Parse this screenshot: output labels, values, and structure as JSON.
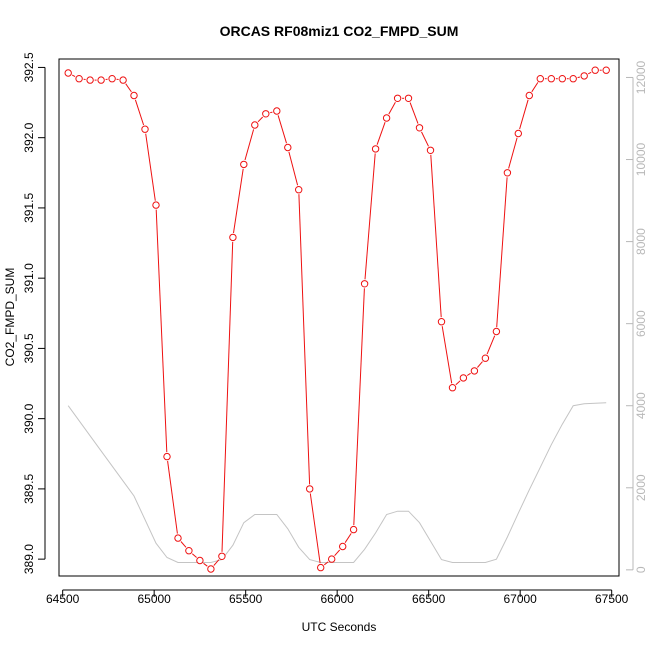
{
  "chart_data": {
    "type": "line",
    "title": "ORCAS RF08miz1 CO2_FMPD_SUM",
    "xlabel": "UTC Seconds",
    "ylabel": "CO2_FMPD_SUM",
    "xlim": [
      64480,
      67540
    ],
    "ylim": [
      388.88,
      392.56
    ],
    "y2lim": [
      -150,
      12450
    ],
    "x_ticks": [
      64500,
      65000,
      65500,
      66000,
      66500,
      67000,
      67500
    ],
    "y_ticks": [
      389.0,
      389.5,
      390.0,
      390.5,
      391.0,
      391.5,
      392.0,
      392.5
    ],
    "y_tick_labels": [
      "389.0",
      "389.5",
      "390.0",
      "390.5",
      "391.0",
      "391.5",
      "392.0",
      "392.5"
    ],
    "y2_ticks": [
      0,
      2000,
      4000,
      6000,
      8000,
      10000,
      12000
    ],
    "grid": false,
    "legend": "none",
    "colors": {
      "primary": "#ee1111",
      "secondary": "#c4c4c4",
      "axis": "#000000",
      "axis_right": "#b8b8b8"
    },
    "series": [
      {
        "axis": "left",
        "style": "line+circle",
        "x": [
          64530,
          64590,
          64650,
          64710,
          64770,
          64830,
          64890,
          64950,
          65010,
          65070,
          65130,
          65190,
          65250,
          65310,
          65370,
          65430,
          65490,
          65550,
          65610,
          65670,
          65730,
          65790,
          65850,
          65910,
          65970,
          66030,
          66090,
          66150,
          66210,
          66270,
          66330,
          66390,
          66450,
          66510,
          66570,
          66630,
          66690,
          66750,
          66810,
          66870,
          66930,
          66990,
          67050,
          67110,
          67170,
          67230,
          67290,
          67350,
          67410,
          67470
        ],
        "values": [
          392.46,
          392.42,
          392.41,
          392.41,
          392.42,
          392.41,
          392.3,
          392.06,
          391.52,
          389.73,
          389.15,
          389.06,
          388.99,
          388.93,
          389.02,
          391.29,
          391.81,
          392.09,
          392.17,
          392.19,
          391.93,
          391.63,
          389.5,
          388.94,
          389.0,
          389.09,
          389.21,
          390.96,
          391.92,
          392.14,
          392.28,
          392.28,
          392.07,
          391.91,
          390.69,
          390.22,
          390.29,
          390.34,
          390.43,
          390.62,
          391.75,
          392.03,
          392.3,
          392.42,
          392.42,
          392.42,
          392.42,
          392.44,
          392.48,
          392.48
        ]
      },
      {
        "axis": "right",
        "style": "line",
        "x": [
          64530,
          64710,
          64890,
          65010,
          65070,
          65130,
          65250,
          65310,
          65370,
          65430,
          65490,
          65550,
          65610,
          65670,
          65730,
          65790,
          65850,
          65910,
          66030,
          66090,
          66150,
          66210,
          66270,
          66330,
          66390,
          66450,
          66510,
          66570,
          66630,
          66690,
          66750,
          66810,
          66870,
          66930,
          66990,
          67050,
          67110,
          67170,
          67230,
          67290,
          67350,
          67410,
          67470
        ],
        "values": [
          4000,
          2900,
          1800,
          650,
          300,
          180,
          180,
          180,
          250,
          600,
          1150,
          1350,
          1350,
          1350,
          1000,
          550,
          250,
          180,
          180,
          180,
          500,
          900,
          1350,
          1430,
          1430,
          1150,
          700,
          250,
          180,
          180,
          180,
          180,
          260,
          800,
          1380,
          1950,
          2500,
          3050,
          3550,
          4000,
          4050,
          4060,
          4070
        ]
      }
    ]
  }
}
